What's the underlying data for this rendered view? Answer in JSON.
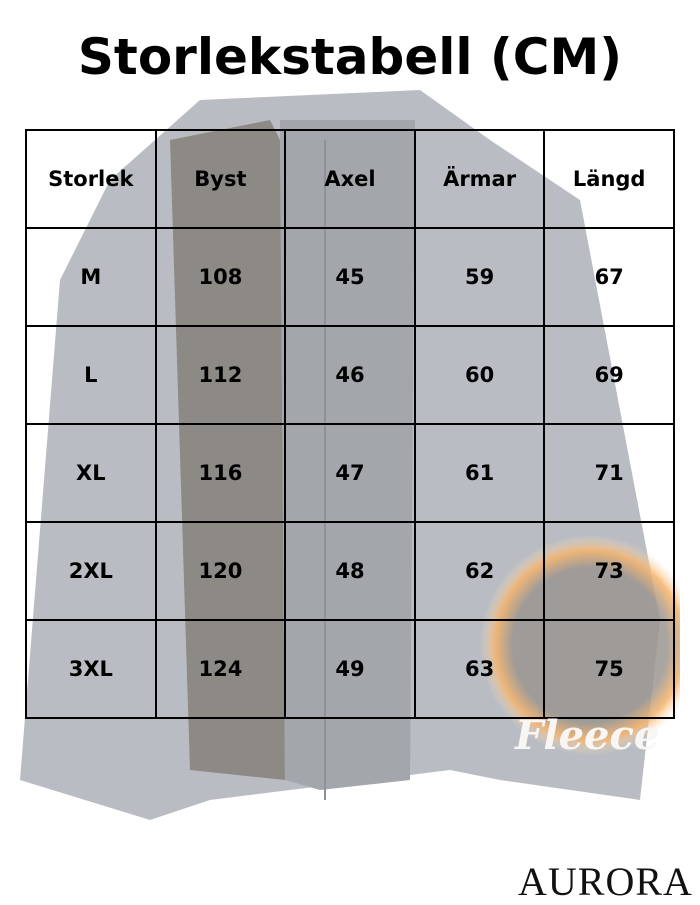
{
  "title": "Storlekstabell (CM)",
  "table": {
    "headers": [
      "Storlek",
      "Byst",
      "Axel",
      "Ärmar",
      "Längd"
    ],
    "rows": [
      [
        "M",
        "108",
        "45",
        "59",
        "67"
      ],
      [
        "L",
        "112",
        "46",
        "60",
        "69"
      ],
      [
        "XL",
        "116",
        "47",
        "61",
        "71"
      ],
      [
        "2XL",
        "120",
        "48",
        "62",
        "73"
      ],
      [
        "3XL",
        "124",
        "49",
        "63",
        "75"
      ]
    ]
  },
  "badge": {
    "label": "Fleece"
  },
  "brand": "AURORA",
  "colors": {
    "jacket": "#b9bdc3",
    "fleece_lining": "#8d8984",
    "fire": "#f2a24a"
  }
}
